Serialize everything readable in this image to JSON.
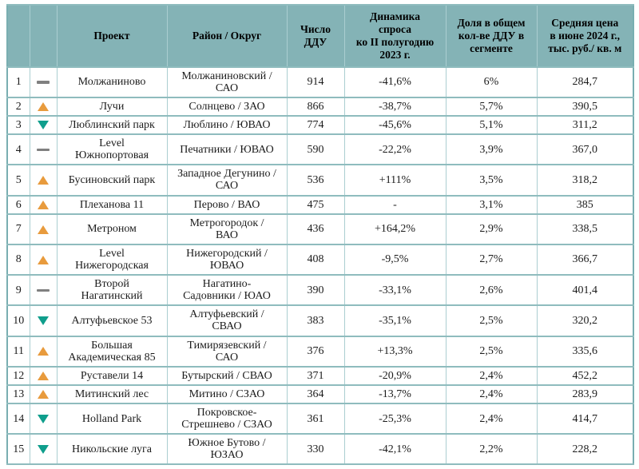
{
  "colors": {
    "header_bg": "#84b3b6",
    "vertical_grid_line": "#abced1",
    "horizontal_grid_line": "#8fbcbe",
    "outer_border": "#79aeb1",
    "up_arrow": "#e89b3d",
    "down_arrow": "#0f9e8c",
    "dash": "#808080",
    "text": "#1c1c1c"
  },
  "chart_data": {
    "type": "table",
    "columns": [
      {
        "key": "rank",
        "label": ""
      },
      {
        "key": "trend",
        "label": ""
      },
      {
        "key": "project",
        "label": "Проект"
      },
      {
        "key": "district",
        "label": "Район / Округ"
      },
      {
        "key": "ddu",
        "label": "Число\nДДУ"
      },
      {
        "key": "dynamics",
        "label": "Динамика\nспроса\nко II полугодию\n2023 г."
      },
      {
        "key": "share",
        "label": "Доля в общем\nкол-ве ДДУ в\nсегменте"
      },
      {
        "key": "price",
        "label": "Средняя цена\nв июне 2024 г.,\nтыс. руб./ кв. м"
      }
    ],
    "rows": [
      {
        "rank": "1",
        "trend": "same",
        "project": "Молжаниново",
        "district": "Молжаниновский /\nСАО",
        "ddu": "914",
        "dynamics": "-41,6%",
        "share": "6%",
        "price": "284,7"
      },
      {
        "rank": "2",
        "trend": "up",
        "project": "Лучи",
        "district": "Солнцево / ЗАО",
        "ddu": "866",
        "dynamics": "-38,7%",
        "share": "5,7%",
        "price": "390,5"
      },
      {
        "rank": "3",
        "trend": "down",
        "project": "Люблинский парк",
        "district": "Люблино / ЮВАО",
        "ddu": "774",
        "dynamics": "-45,6%",
        "share": "5,1%",
        "price": "311,2"
      },
      {
        "rank": "4",
        "trend": "same",
        "project": "Level\nЮжнопортовая",
        "district": "Печатники / ЮВАО",
        "ddu": "590",
        "dynamics": "-22,2%",
        "share": "3,9%",
        "price": "367,0"
      },
      {
        "rank": "5",
        "trend": "up",
        "project": "Бусиновский парк",
        "district": "Западное Дегунино /\nСАО",
        "ddu": "536",
        "dynamics": "+111%",
        "share": "3,5%",
        "price": "318,2"
      },
      {
        "rank": "6",
        "trend": "up",
        "project": "Плеханова 11",
        "district": "Перово / ВАО",
        "ddu": "475",
        "dynamics": "-",
        "share": "3,1%",
        "price": "385"
      },
      {
        "rank": "7",
        "trend": "up",
        "project": "Метроном",
        "district": "Метрогородок /\nВАО",
        "ddu": "436",
        "dynamics": "+164,2%",
        "share": "2,9%",
        "price": "338,5"
      },
      {
        "rank": "8",
        "trend": "up",
        "project": "Level\nНижегородская",
        "district": "Нижегородский /\nЮВАО",
        "ddu": "408",
        "dynamics": "-9,5%",
        "share": "2,7%",
        "price": "366,7"
      },
      {
        "rank": "9",
        "trend": "same",
        "project": "Второй\nНагатинский",
        "district": "Нагатино-\nСадовники / ЮАО",
        "ddu": "390",
        "dynamics": "-33,1%",
        "share": "2,6%",
        "price": "401,4"
      },
      {
        "rank": "10",
        "trend": "down",
        "project": "Алтуфьевское 53",
        "district": "Алтуфьевский /\nСВАО",
        "ddu": "383",
        "dynamics": "-35,1%",
        "share": "2,5%",
        "price": "320,2"
      },
      {
        "rank": "11",
        "trend": "up",
        "project": "Большая\nАкадемическая 85",
        "district": "Тимирязевский /\nСАО",
        "ddu": "376",
        "dynamics": "+13,3%",
        "share": "2,5%",
        "price": "335,6"
      },
      {
        "rank": "12",
        "trend": "up",
        "project": "Руставели 14",
        "district": "Бутырский / СВАО",
        "ddu": "371",
        "dynamics": "-20,9%",
        "share": "2,4%",
        "price": "452,2"
      },
      {
        "rank": "13",
        "trend": "up",
        "project": "Митинский лес",
        "district": "Митино / СЗАО",
        "ddu": "364",
        "dynamics": "-13,7%",
        "share": "2,4%",
        "price": "283,9"
      },
      {
        "rank": "14",
        "trend": "down",
        "project": "Holland Park",
        "district": "Покровское-\nСтрешнево / СЗАО",
        "ddu": "361",
        "dynamics": "-25,3%",
        "share": "2,4%",
        "price": "414,7"
      },
      {
        "rank": "15",
        "trend": "down",
        "project": "Никольские луга",
        "district": "Южное Бутово /\nЮЗАО",
        "ddu": "330",
        "dynamics": "-42,1%",
        "share": "2,2%",
        "price": "228,2"
      }
    ]
  }
}
